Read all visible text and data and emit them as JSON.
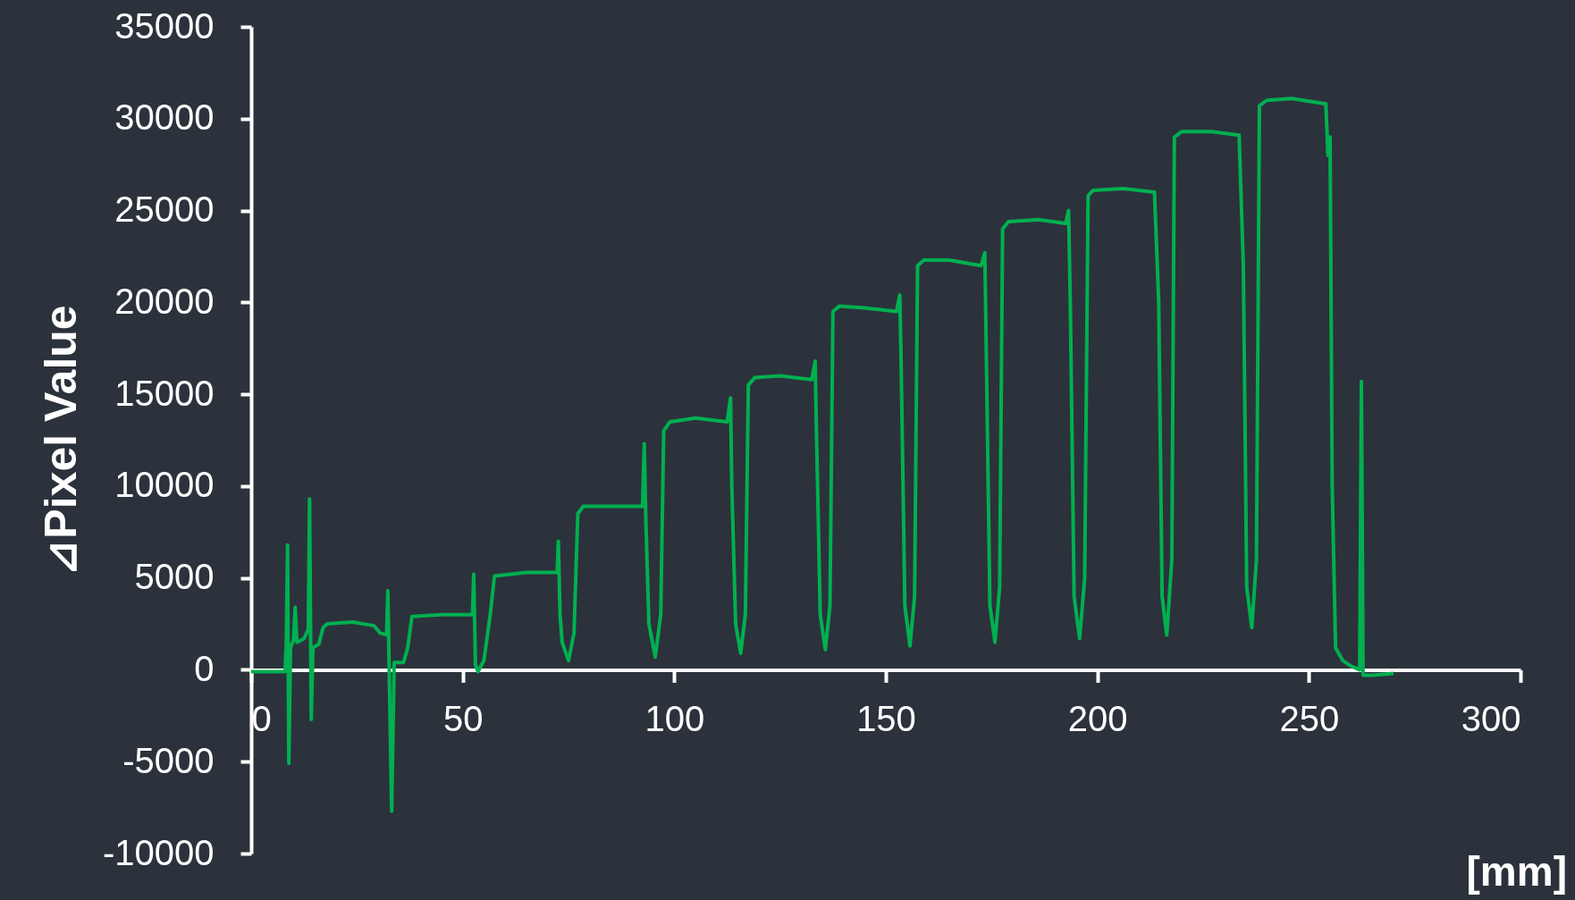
{
  "chart_data": {
    "type": "line",
    "xlabel": "[mm]",
    "ylabel": "⊿Pixel Value",
    "xlim": [
      0,
      300
    ],
    "xticks": [
      0,
      50,
      100,
      150,
      200,
      250,
      300
    ],
    "ylim": [
      -10000,
      35000
    ],
    "yticks": [
      -10000,
      -5000,
      0,
      5000,
      10000,
      15000,
      20000,
      25000,
      30000,
      35000
    ],
    "grid": false,
    "marker": "none",
    "line_style": "solid",
    "series": [
      {
        "color": "#00b050",
        "x": [
          0,
          8,
          8.3,
          8.6,
          8.9,
          9.3,
          10,
          10.4,
          10.8,
          12.5,
          13.5,
          13.8,
          14.2,
          14.6,
          16,
          17,
          18,
          24,
          29,
          30.5,
          32,
          32.3,
          33.2,
          33.8,
          36,
          37,
          38,
          45,
          52.3,
          52.6,
          53,
          53.6,
          55,
          56.5,
          57.5,
          65,
          72.3,
          72.6,
          73,
          73.5,
          75,
          76.3,
          77.2,
          78.5,
          85,
          92.5,
          92.9,
          93.3,
          94,
          95.5,
          96.8,
          97.5,
          99,
          105,
          112.5,
          113.3,
          113.6,
          114.5,
          115.7,
          116.8,
          117.5,
          119,
          125,
          132.5,
          133.3,
          133.6,
          134.5,
          135.7,
          136.8,
          137.5,
          139,
          145,
          152.5,
          153.3,
          153.6,
          154.5,
          155.7,
          156.8,
          157.5,
          159,
          165,
          172.5,
          173.4,
          173.7,
          174.6,
          175.8,
          176.9,
          177.6,
          179,
          186,
          192.5,
          193.2,
          193.6,
          194.5,
          195.8,
          197,
          197.8,
          199,
          206,
          213.5,
          214.5,
          215.3,
          216.4,
          217.6,
          218.2,
          220,
          227,
          233.5,
          234.5,
          235.3,
          236.5,
          237.6,
          238.3,
          240,
          246,
          254,
          254.5,
          255,
          255.5,
          256.3,
          258,
          260,
          262,
          262.4,
          262.8,
          265,
          270
        ],
        "values": [
          -100,
          -100,
          1500,
          6800,
          -5100,
          1200,
          1600,
          3400,
          1500,
          1700,
          2200,
          9300,
          -2700,
          1200,
          1400,
          2300,
          2500,
          2600,
          2400,
          2000,
          1900,
          4300,
          -7700,
          400,
          400,
          1200,
          2900,
          3000,
          3000,
          5200,
          300,
          -100,
          500,
          3000,
          5100,
          5300,
          5300,
          7000,
          3000,
          1500,
          500,
          2000,
          8500,
          8900,
          8900,
          8900,
          12300,
          8000,
          2500,
          700,
          3000,
          13000,
          13500,
          13700,
          13500,
          14800,
          10000,
          2500,
          900,
          3000,
          15500,
          15900,
          16000,
          15800,
          16800,
          13000,
          3000,
          1100,
          3500,
          19500,
          19800,
          19700,
          19500,
          20400,
          17000,
          3500,
          1300,
          4000,
          22000,
          22300,
          22300,
          22000,
          22700,
          18000,
          3500,
          1500,
          4500,
          24000,
          24400,
          24500,
          24300,
          25000,
          20000,
          4000,
          1700,
          5000,
          25800,
          26100,
          26200,
          26000,
          20000,
          4000,
          1900,
          6000,
          29000,
          29300,
          29300,
          29100,
          22000,
          4500,
          2300,
          6000,
          30700,
          31000,
          31100,
          30800,
          28000,
          29000,
          10000,
          1200,
          500,
          200,
          0,
          15700,
          -300,
          -300,
          -200
        ]
      }
    ]
  }
}
